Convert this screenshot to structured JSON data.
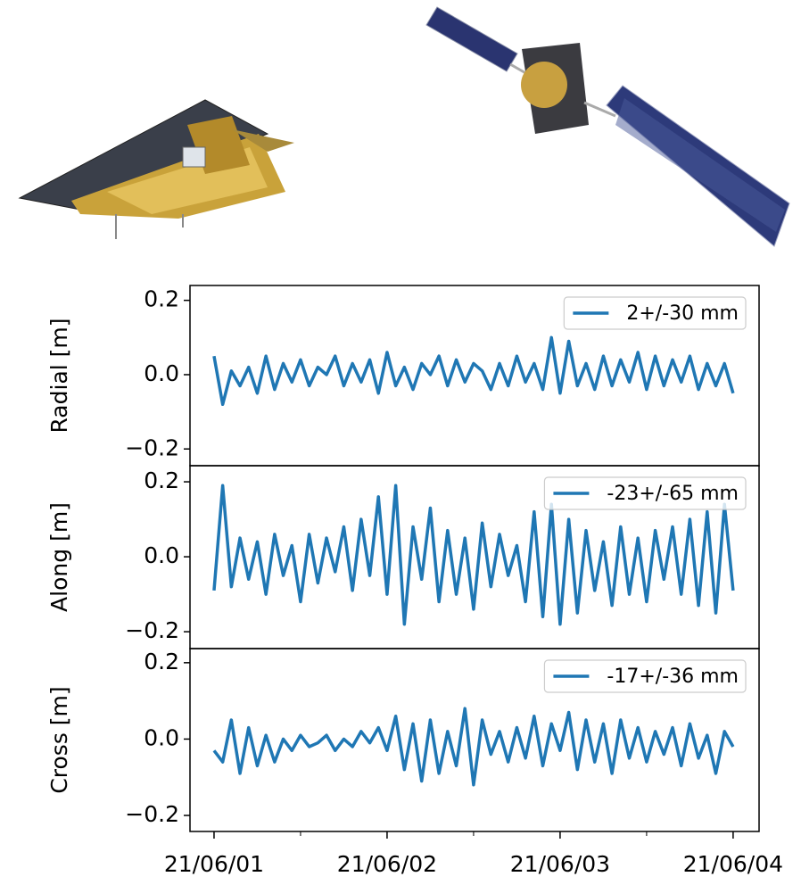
{
  "chart_data": [
    {
      "type": "line",
      "ylabel": "Radial [m]",
      "x": [
        0,
        0.05,
        0.1,
        0.15,
        0.2,
        0.25,
        0.3,
        0.35,
        0.4,
        0.45,
        0.5,
        0.55,
        0.6,
        0.65,
        0.7,
        0.75,
        0.8,
        0.85,
        0.9,
        0.95,
        1,
        1.05,
        1.1,
        1.15,
        1.2,
        1.25,
        1.3,
        1.35,
        1.4,
        1.45,
        1.5,
        1.55,
        1.6,
        1.65,
        1.7,
        1.75,
        1.8,
        1.85,
        1.9,
        1.95,
        2,
        2.05,
        2.1,
        2.15,
        2.2,
        2.25,
        2.3,
        2.35,
        2.4,
        2.45,
        2.5,
        2.55,
        2.6,
        2.65,
        2.7,
        2.75,
        2.8,
        2.85,
        2.9,
        2.95,
        3
      ],
      "series": [
        {
          "name": "2+/-30 mm",
          "color": "#1f77b4",
          "values": [
            0.05,
            -0.08,
            0.01,
            -0.03,
            0.02,
            -0.05,
            0.05,
            -0.04,
            0.03,
            -0.02,
            0.04,
            -0.03,
            0.02,
            0.0,
            0.05,
            -0.03,
            0.03,
            -0.02,
            0.04,
            -0.05,
            0.06,
            -0.03,
            0.02,
            -0.04,
            0.03,
            0.0,
            0.05,
            -0.03,
            0.04,
            -0.02,
            0.03,
            0.01,
            -0.04,
            0.03,
            -0.03,
            0.05,
            -0.02,
            0.03,
            -0.04,
            0.1,
            -0.05,
            0.09,
            -0.03,
            0.03,
            -0.04,
            0.05,
            -0.03,
            0.04,
            -0.02,
            0.06,
            -0.04,
            0.05,
            -0.03,
            0.04,
            -0.02,
            0.05,
            -0.04,
            0.03,
            -0.03,
            0.03,
            -0.05
          ]
        }
      ],
      "xlim": [
        -0.139,
        3.15
      ],
      "ylim": [
        -0.245,
        0.24
      ],
      "yticks": [
        {
          "value": -0.2,
          "label": "−0.2"
        },
        {
          "value": 0,
          "label": "0.0"
        },
        0.2
      ],
      "legend": "upper right"
    },
    {
      "type": "line",
      "ylabel": "Along [m]",
      "x": [
        0,
        0.05,
        0.1,
        0.15,
        0.2,
        0.25,
        0.3,
        0.35,
        0.4,
        0.45,
        0.5,
        0.55,
        0.6,
        0.65,
        0.7,
        0.75,
        0.8,
        0.85,
        0.9,
        0.95,
        1,
        1.05,
        1.1,
        1.15,
        1.2,
        1.25,
        1.3,
        1.35,
        1.4,
        1.45,
        1.5,
        1.55,
        1.6,
        1.65,
        1.7,
        1.75,
        1.8,
        1.85,
        1.9,
        1.95,
        2,
        2.05,
        2.1,
        2.15,
        2.2,
        2.25,
        2.3,
        2.35,
        2.4,
        2.45,
        2.5,
        2.55,
        2.6,
        2.65,
        2.7,
        2.75,
        2.8,
        2.85,
        2.9,
        2.95,
        3
      ],
      "series": [
        {
          "name": "-23+/-65 mm",
          "color": "#1f77b4",
          "values": [
            -0.09,
            0.19,
            -0.08,
            0.05,
            -0.06,
            0.04,
            -0.1,
            0.06,
            -0.05,
            0.03,
            -0.12,
            0.06,
            -0.07,
            0.05,
            -0.04,
            0.08,
            -0.09,
            0.1,
            -0.05,
            0.16,
            -0.1,
            0.19,
            -0.18,
            0.08,
            -0.06,
            0.13,
            -0.12,
            0.07,
            -0.1,
            0.05,
            -0.14,
            0.09,
            -0.08,
            0.06,
            -0.05,
            0.03,
            -0.12,
            0.12,
            -0.16,
            0.14,
            -0.18,
            0.1,
            -0.15,
            0.07,
            -0.09,
            0.04,
            -0.13,
            0.08,
            -0.1,
            0.05,
            -0.12,
            0.07,
            -0.06,
            0.08,
            -0.1,
            0.1,
            -0.13,
            0.12,
            -0.15,
            0.14,
            -0.09
          ]
        }
      ],
      "xlim": [
        -0.139,
        3.15
      ],
      "ylim": [
        -0.245,
        0.243
      ],
      "yticks": [
        {
          "value": -0.2,
          "label": "−0.2"
        },
        {
          "value": 0,
          "label": "0.0"
        },
        0.2
      ],
      "legend": "upper right"
    },
    {
      "type": "line",
      "ylabel": "Cross [m]",
      "x": [
        0,
        0.05,
        0.1,
        0.15,
        0.2,
        0.25,
        0.3,
        0.35,
        0.4,
        0.45,
        0.5,
        0.55,
        0.6,
        0.65,
        0.7,
        0.75,
        0.8,
        0.85,
        0.9,
        0.95,
        1,
        1.05,
        1.1,
        1.15,
        1.2,
        1.25,
        1.3,
        1.35,
        1.4,
        1.45,
        1.5,
        1.55,
        1.6,
        1.65,
        1.7,
        1.75,
        1.8,
        1.85,
        1.9,
        1.95,
        2,
        2.05,
        2.1,
        2.15,
        2.2,
        2.25,
        2.3,
        2.35,
        2.4,
        2.45,
        2.5,
        2.55,
        2.6,
        2.65,
        2.7,
        2.75,
        2.8,
        2.85,
        2.9,
        2.95,
        3
      ],
      "series": [
        {
          "name": "-17+/-36 mm",
          "color": "#1f77b4",
          "values": [
            -0.03,
            -0.06,
            0.05,
            -0.09,
            0.03,
            -0.07,
            0.01,
            -0.06,
            0.0,
            -0.03,
            0.01,
            -0.02,
            -0.01,
            0.01,
            -0.03,
            0.0,
            -0.02,
            0.02,
            -0.01,
            0.03,
            -0.03,
            0.06,
            -0.08,
            0.04,
            -0.11,
            0.05,
            -0.09,
            0.02,
            -0.07,
            0.08,
            -0.12,
            0.05,
            -0.04,
            0.02,
            -0.06,
            0.03,
            -0.05,
            0.06,
            -0.07,
            0.04,
            -0.03,
            0.07,
            -0.08,
            0.05,
            -0.06,
            0.04,
            -0.09,
            0.05,
            -0.05,
            0.03,
            -0.06,
            0.02,
            -0.04,
            0.03,
            -0.07,
            0.04,
            -0.05,
            0.01,
            -0.09,
            0.02,
            -0.02
          ]
        }
      ],
      "xlim": [
        -0.139,
        3.15
      ],
      "ylim": [
        -0.242,
        0.237
      ],
      "yticks": [
        {
          "value": -0.2,
          "label": "−0.2"
        },
        {
          "value": 0,
          "label": "0.0"
        },
        0.2
      ],
      "xticks": [
        {
          "value": 0,
          "label": "21/06/01"
        },
        {
          "value": 1,
          "label": "21/06/02"
        },
        {
          "value": 2,
          "label": "21/06/03"
        },
        {
          "value": 3,
          "label": "21/06/04"
        }
      ],
      "xminorticks": [
        0.5,
        1.5,
        2.5
      ],
      "legend": "upper right"
    }
  ]
}
